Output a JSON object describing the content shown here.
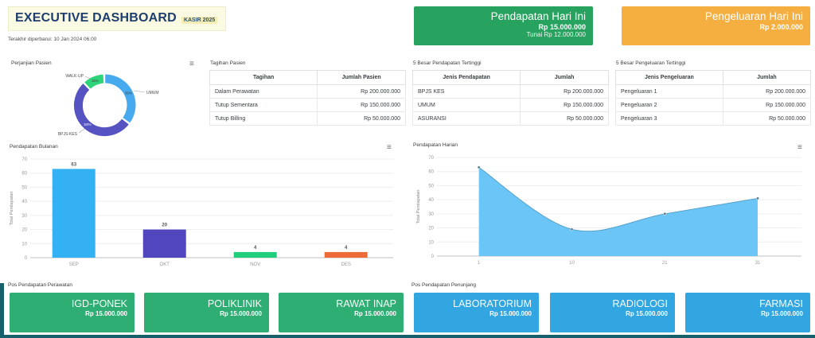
{
  "header": {
    "title": "EXECUTIVE DASHBOARD",
    "badge": "KASIR 2025",
    "last_updated": "Terakhir diperbarui: 10 Jan 2024 06.00"
  },
  "icons": {
    "chart_menu": "≡"
  },
  "summary_cards": {
    "income": {
      "title": "Pendapatan Hari Ini",
      "value": "Rp 15.000.000",
      "subvalue": "Tunai Rp 12.000.000",
      "color": "#27a35f"
    },
    "expense": {
      "title": "Pengeluaran Hari Ini",
      "value": "Rp 2.000.000",
      "color": "#f5af41"
    }
  },
  "tables": {
    "tagihan": {
      "title": "Tagihan Pasien",
      "columns": [
        "Tagihan",
        "Jumlah Pasien"
      ],
      "rows": [
        {
          "label": "Dalam Perawatan",
          "value": "Rp 200.000.000"
        },
        {
          "label": "Tutup Sementara",
          "value": "Rp 150.000.000"
        },
        {
          "label": "Tutup Billing",
          "value": "Rp 50.000.000"
        }
      ]
    },
    "pendapatan5": {
      "title": "5 Besar Pendapatan Tertinggi",
      "columns": [
        "Jenis Pendapatan",
        "Jumlah"
      ],
      "rows": [
        {
          "label": "BPJS KES",
          "value": "Rp 200.000.000"
        },
        {
          "label": "UMUM",
          "value": "Rp 150.000.000"
        },
        {
          "label": "ASURANSI",
          "value": "Rp 50.000.000"
        }
      ]
    },
    "pengeluaran5": {
      "title": "5 Besar Pengeluaran Tertinggi",
      "columns": [
        "Jenis Pengeluaran",
        "Jumlah"
      ],
      "rows": [
        {
          "label": "Pengeluaran 1",
          "value": "Rp 200.000.000"
        },
        {
          "label": "Pengeluaran 2",
          "value": "Rp 150.000.000"
        },
        {
          "label": "Pengeluaran 3",
          "value": "Rp 50.000.000"
        }
      ]
    }
  },
  "chart_data": [
    {
      "id": "appointment",
      "type": "pie",
      "title": "Perjanjian Pasien",
      "labels": [
        "WALK-UP",
        "UMUM",
        "BPJS-KES"
      ],
      "values": [
        11,
        36,
        53
      ],
      "pct_labels": [
        "11%",
        "36%",
        "53%"
      ],
      "colors": [
        "#2ed47a",
        "#47aaee",
        "#5552c1"
      ],
      "legend_position": "none"
    },
    {
      "id": "monthly",
      "type": "bar",
      "title": "Pendapatan Bulanan",
      "categories": [
        "SEP",
        "OKT",
        "NOV",
        "DES"
      ],
      "values": [
        63,
        20,
        4,
        4
      ],
      "colors": [
        "#33b1f3",
        "#5146be",
        "#21ce7c",
        "#ed6a39"
      ],
      "xlabel": "",
      "ylabel": "Total Pendapatan",
      "ylim": [
        0,
        70
      ],
      "ytick_step": 10,
      "grid": true
    },
    {
      "id": "daily",
      "type": "area",
      "title": "Pendapatan Harian",
      "x": [
        "1",
        "10",
        "21",
        "31"
      ],
      "values": [
        63,
        19,
        30,
        41
      ],
      "color": "#63c3f7",
      "line_color": "#4f9cc6",
      "marker_color": "#5b7c8d",
      "xlabel": "",
      "ylabel": "Total Pendapatan",
      "ylim": [
        0,
        70
      ],
      "ytick_step": 10,
      "grid": true
    }
  ],
  "sections": {
    "perawatan": {
      "label": "Pos Pendapatan Perawatan",
      "color": "#2fae74",
      "cards": [
        {
          "name": "IGD-PONEK",
          "value": "Rp 15.000.000"
        },
        {
          "name": "POLIKLINIK",
          "value": "Rp 15.000.000"
        },
        {
          "name": "RAWAT INAP",
          "value": "Rp 15.000.000"
        }
      ]
    },
    "penunjang": {
      "label": "Pos Pendapatan Penunjang",
      "color": "#31a6e0",
      "cards": [
        {
          "name": "LABORATORIUM",
          "value": "Rp 15.000.000"
        },
        {
          "name": "RADIOLOGI",
          "value": "Rp 15.000.000"
        },
        {
          "name": "FARMASI",
          "value": "Rp 15.000.000"
        }
      ]
    }
  }
}
